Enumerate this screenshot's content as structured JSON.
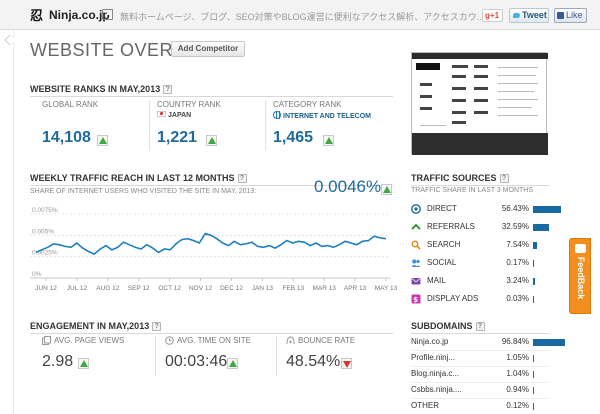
{
  "header": {
    "site_name": "Ninja.co.jp",
    "site_description": "無料ホームページ、ブログ、SEO対策やBLOG運営に便利なアクセス解析、アクセスカウ...",
    "gplus_count": "+1",
    "tweet_label": "Tweet",
    "like_label": "Like"
  },
  "overview": {
    "title": "WEBSITE OVERVIEW",
    "add_competitor_label": "Add Competitor"
  },
  "ranks": {
    "title": "WEBSITE RANKS IN MAY,2013",
    "help": "?",
    "global": {
      "label": "GLOBAL RANK",
      "value": "14,108"
    },
    "country": {
      "label": "COUNTRY RANK",
      "sub": "JAPAN",
      "value": "1,221"
    },
    "category": {
      "label": "CATEGORY RANK",
      "sub": "INTERNET AND TELECOM",
      "value": "1,465"
    }
  },
  "traffic_reach": {
    "title": "WEEKLY TRAFFIC REACH IN LAST 12 MONTHS",
    "help": "?",
    "subtitle": "SHARE OF INTERNET USERS WHO VISITED THE SITE IN MAY, 2013:",
    "value": "0.0046%"
  },
  "chart_data": {
    "type": "line",
    "title": "",
    "xlabel": "",
    "ylabel": "",
    "ylim": [
      0,
      0.0075
    ],
    "y_ticks": [
      "0.0075%",
      "0.005%",
      "0.0025%",
      "0%"
    ],
    "x_ticks": [
      "JUN 12",
      "JUL 12",
      "AUG 12",
      "SEP 12",
      "OCT 12",
      "NOV 12",
      "DEC 12",
      "JAN 13",
      "FEB 13",
      "MAR 13",
      "APR 13",
      "MAY 13"
    ],
    "grid": true,
    "series": [
      {
        "values": [
          0.003,
          0.0033,
          0.0036,
          0.004,
          0.0039,
          0.0037,
          0.0036,
          0.0041,
          0.0035,
          0.0031,
          0.0028,
          0.0034,
          0.0038,
          0.0033,
          0.0036,
          0.0042,
          0.0039,
          0.0036,
          0.0034,
          0.0039,
          0.0035,
          0.003,
          0.0034,
          0.0033,
          0.004,
          0.0045,
          0.0046,
          0.0044,
          0.0041,
          0.0052,
          0.005,
          0.0046,
          0.0041,
          0.0038,
          0.0043,
          0.0039,
          0.004,
          0.0042,
          0.0037,
          0.0036,
          0.0038,
          0.0035,
          0.0039,
          0.0044,
          0.0041,
          0.0043,
          0.0042,
          0.0038,
          0.0041,
          0.0037,
          0.0038,
          0.0036,
          0.0039,
          0.0043,
          0.0041,
          0.0039,
          0.0043,
          0.0044,
          0.0049,
          0.0047,
          0.0046
        ],
        "color": "#1e7fc0"
      }
    ]
  },
  "traffic_sources": {
    "title": "TRAFFIC SOURCES",
    "help": "?",
    "subtitle": "TRAFFIC SHARE IN LAST 3 MONTHS",
    "items": [
      {
        "name": "DIRECT",
        "pct": "56.43%",
        "value": 56.43,
        "icon": "direct-icon",
        "color": "#1a6aa1"
      },
      {
        "name": "REFERRALS",
        "pct": "32.59%",
        "value": 32.59,
        "icon": "referrals-icon",
        "color": "#3a9a3a"
      },
      {
        "name": "SEARCH",
        "pct": "7.54%",
        "value": 7.54,
        "icon": "search-icon",
        "color": "#e38a1e"
      },
      {
        "name": "SOCIAL",
        "pct": "0.17%",
        "value": 0.17,
        "icon": "social-icon",
        "color": "#3b8fd6"
      },
      {
        "name": "MAIL",
        "pct": "3.24%",
        "value": 3.24,
        "icon": "mail-icon",
        "color": "#7a4aa8"
      },
      {
        "name": "DISPLAY ADS",
        "pct": "0.03%",
        "value": 0.03,
        "icon": "display-ads-icon",
        "color": "#c73bb5"
      }
    ]
  },
  "engagement": {
    "title": "ENGAGEMENT IN MAY,2013",
    "help": "?",
    "page_views": {
      "label": "AVG. PAGE VIEWS",
      "value": "2.98"
    },
    "time_on_site": {
      "label": "AVG. TIME ON SITE",
      "value": "00:03:46"
    },
    "bounce_rate": {
      "label": "BOUNCE RATE",
      "value": "48.54%"
    }
  },
  "subdomains": {
    "title": "SUBDOMAINS",
    "help": "?",
    "items": [
      {
        "name": "Ninja.co.jp",
        "pct": "96.84%",
        "value": 96.84
      },
      {
        "name": "Profile.ninj...",
        "pct": "1.05%",
        "value": 1.05
      },
      {
        "name": "Blog.ninja.c...",
        "pct": "1.04%",
        "value": 1.04
      },
      {
        "name": "Csbbs.ninja....",
        "pct": "0.94%",
        "value": 0.94
      },
      {
        "name": "OTHER",
        "pct": "0.12%",
        "value": 0.12
      }
    ]
  },
  "feedback": {
    "label": "FeedBack"
  }
}
